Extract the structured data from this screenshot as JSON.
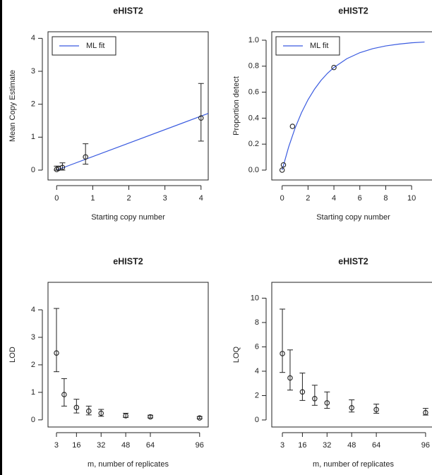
{
  "chart_data": [
    {
      "type": "scatter",
      "title": "eHIST2",
      "xlabel": "Starting copy number",
      "ylabel": "Mean Copy Estimate",
      "xlim": [
        -0.24,
        4.2
      ],
      "ylim": [
        -0.3,
        4.2
      ],
      "xticks": [
        0,
        1,
        2,
        3,
        4
      ],
      "yticks": [
        0,
        1,
        2,
        3,
        4
      ],
      "legend": "topleft",
      "points": {
        "x": [
          0,
          0.05,
          0.16,
          0.8,
          4
        ],
        "values": [
          0.02,
          0.05,
          0.08,
          0.4,
          1.58
        ],
        "lower": [
          0,
          0,
          0,
          0.18,
          0.88
        ],
        "upper": [
          0.12,
          0.12,
          0.22,
          0.8,
          2.63
        ]
      },
      "series": [
        {
          "name": "ML fit",
          "color": "#3a5be0",
          "x": [
            0,
            4.2
          ],
          "values": [
            0,
            1.72
          ]
        }
      ]
    },
    {
      "type": "scatter",
      "title": "eHIST2",
      "xlabel": "Starting copy number",
      "ylabel": "Proportion detect",
      "xlim": [
        -0.8,
        13.1
      ],
      "ylim": [
        -0.076,
        1.065
      ],
      "xticks": [
        0,
        2,
        4,
        6,
        8,
        10
      ],
      "yticks": [
        {
          "value": 0,
          "label": "0.0"
        },
        0.2,
        0.4,
        0.6,
        0.8,
        {
          "value": 1,
          "label": "1.0"
        }
      ],
      "legend": "topleft",
      "points": {
        "x": [
          0,
          0.1,
          0.8,
          4
        ],
        "values": [
          0,
          0.04,
          0.337,
          0.79
        ]
      },
      "series": [
        {
          "name": "ML fit",
          "color": "#3a5be0",
          "x": [
            0,
            0.5,
            1,
            1.5,
            2,
            2.5,
            3,
            3.5,
            4,
            5,
            6,
            7,
            8,
            9,
            10,
            11
          ],
          "values": [
            0,
            0.177,
            0.323,
            0.443,
            0.542,
            0.623,
            0.69,
            0.745,
            0.79,
            0.858,
            0.904,
            0.935,
            0.956,
            0.97,
            0.98,
            0.986
          ]
        }
      ]
    },
    {
      "type": "scatter",
      "title": "eHIST2",
      "xlabel": "m, number of replicates",
      "ylabel": "LOD",
      "xlim": [
        -2.5,
        101.6
      ],
      "ylim": [
        -0.26,
        5.0
      ],
      "xticks": [
        3,
        16,
        32,
        48,
        64,
        96
      ],
      "yticks": [
        0,
        1,
        2,
        3,
        4
      ],
      "points": {
        "x": [
          3,
          8,
          16,
          24,
          32,
          48,
          64,
          96
        ],
        "values": [
          2.43,
          0.92,
          0.45,
          0.32,
          0.24,
          0.15,
          0.11,
          0.07
        ],
        "lower": [
          1.75,
          0.5,
          0.25,
          0.18,
          0.13,
          0.09,
          0.07,
          0.04
        ],
        "upper": [
          4.05,
          1.5,
          0.75,
          0.5,
          0.38,
          0.24,
          0.17,
          0.12
        ]
      }
    },
    {
      "type": "scatter",
      "title": "eHIST2",
      "xlabel": "m, number of replicates",
      "ylabel": "LOQ",
      "xlim": [
        -3.9,
        113
      ],
      "ylim": [
        -0.58,
        11.3
      ],
      "xticks": [
        3,
        16,
        32,
        48,
        64,
        96
      ],
      "yticks": [
        0,
        2,
        4,
        6,
        8,
        10
      ],
      "points": {
        "x": [
          3,
          8,
          16,
          24,
          32,
          48,
          64,
          96
        ],
        "values": [
          5.45,
          3.45,
          2.3,
          1.75,
          1.4,
          1.0,
          0.85,
          0.6
        ],
        "lower": [
          3.9,
          2.45,
          1.6,
          1.2,
          0.95,
          0.65,
          0.55,
          0.4
        ],
        "upper": [
          9.1,
          5.75,
          3.85,
          2.85,
          2.3,
          1.65,
          1.3,
          0.95
        ]
      }
    }
  ]
}
